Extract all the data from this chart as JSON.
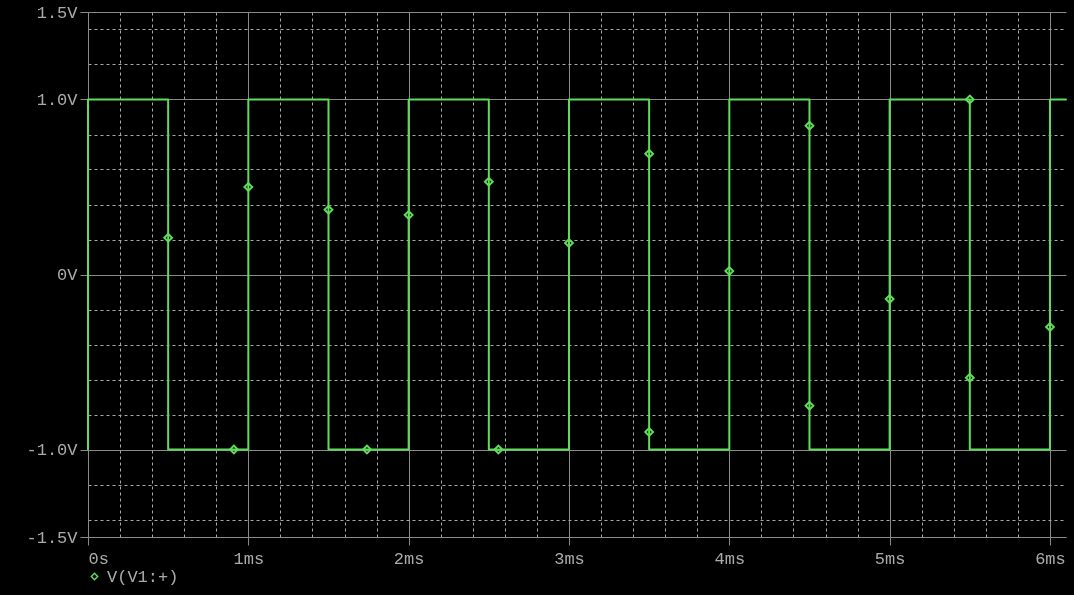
{
  "chart_data": {
    "type": "line",
    "xlim": [
      0,
      6.1
    ],
    "ylim": [
      -1.5,
      1.5
    ],
    "xticks": [
      {
        "value": 0,
        "label": "0s"
      },
      {
        "value": 0.2,
        "label": null
      },
      {
        "value": 0.4,
        "label": null
      },
      {
        "value": 0.6,
        "label": null
      },
      {
        "value": 0.8,
        "label": null
      },
      {
        "value": 1,
        "label": "1ms"
      },
      {
        "value": 1.2,
        "label": null
      },
      {
        "value": 1.4,
        "label": null
      },
      {
        "value": 1.6,
        "label": null
      },
      {
        "value": 1.8,
        "label": null
      },
      {
        "value": 2,
        "label": "2ms"
      },
      {
        "value": 2.2,
        "label": null
      },
      {
        "value": 2.4,
        "label": null
      },
      {
        "value": 2.6,
        "label": null
      },
      {
        "value": 2.8,
        "label": null
      },
      {
        "value": 3,
        "label": "3ms"
      },
      {
        "value": 3.2,
        "label": null
      },
      {
        "value": 3.4,
        "label": null
      },
      {
        "value": 3.6,
        "label": null
      },
      {
        "value": 3.8,
        "label": null
      },
      {
        "value": 4,
        "label": "4ms"
      },
      {
        "value": 4.2,
        "label": null
      },
      {
        "value": 4.4,
        "label": null
      },
      {
        "value": 4.6,
        "label": null
      },
      {
        "value": 4.8,
        "label": null
      },
      {
        "value": 5,
        "label": "5ms"
      },
      {
        "value": 5.2,
        "label": null
      },
      {
        "value": 5.4,
        "label": null
      },
      {
        "value": 5.6,
        "label": null
      },
      {
        "value": 5.8,
        "label": null
      },
      {
        "value": 6,
        "label": "6ms"
      }
    ],
    "yticks": [
      {
        "value": -1.5,
        "label": "-1.5V"
      },
      {
        "value": -1.4,
        "label": null
      },
      {
        "value": -1.2,
        "label": null
      },
      {
        "value": -1.0,
        "label": "-1.0V"
      },
      {
        "value": -0.8,
        "label": null
      },
      {
        "value": -0.6,
        "label": null
      },
      {
        "value": -0.4,
        "label": null
      },
      {
        "value": -0.2,
        "label": null
      },
      {
        "value": 0,
        "label": "0V"
      },
      {
        "value": 0.2,
        "label": null
      },
      {
        "value": 0.4,
        "label": null
      },
      {
        "value": 0.6,
        "label": null
      },
      {
        "value": 0.8,
        "label": null
      },
      {
        "value": 1.0,
        "label": "1.0V"
      },
      {
        "value": 1.2,
        "label": null
      },
      {
        "value": 1.4,
        "label": null
      },
      {
        "value": 1.5,
        "label": "1.5V"
      }
    ],
    "grid": true,
    "legend": "bottom left",
    "line_style": "solid",
    "series": [
      {
        "color": "#5fdc5a",
        "x": [
          0,
          0,
          0.5,
          0.5,
          1,
          1,
          1.5,
          1.5,
          2,
          2,
          2.5,
          2.5,
          3,
          3,
          3.5,
          3.5,
          4,
          4,
          4.5,
          4.5,
          5,
          5,
          5.5,
          5.5,
          6,
          6,
          6.1
        ],
        "values": [
          -1,
          1,
          1,
          -1,
          -1,
          1,
          1,
          -1,
          -1,
          1,
          1,
          -1,
          -1,
          1,
          1,
          -1,
          -1,
          1,
          1,
          -1,
          -1,
          1,
          1,
          -1,
          -1,
          1,
          1
        ]
      },
      {
        "type": "scatter",
        "name": "V(V1:+)",
        "color": "#5fdc5a",
        "marker": "diamond",
        "x": [
          0.5,
          0.91,
          1,
          1.5,
          1.74,
          2,
          2.5,
          2.56,
          3,
          3.5,
          3.5,
          4,
          4.5,
          4.5,
          5,
          5.5,
          5.5,
          6
        ],
        "values": [
          0.21,
          -1.0,
          0.5,
          0.37,
          -1.0,
          0.34,
          0.53,
          -1.0,
          0.18,
          0.69,
          -0.9,
          0.02,
          0.85,
          -0.75,
          -0.14,
          1.0,
          -0.59,
          -0.3
        ]
      }
    ]
  }
}
